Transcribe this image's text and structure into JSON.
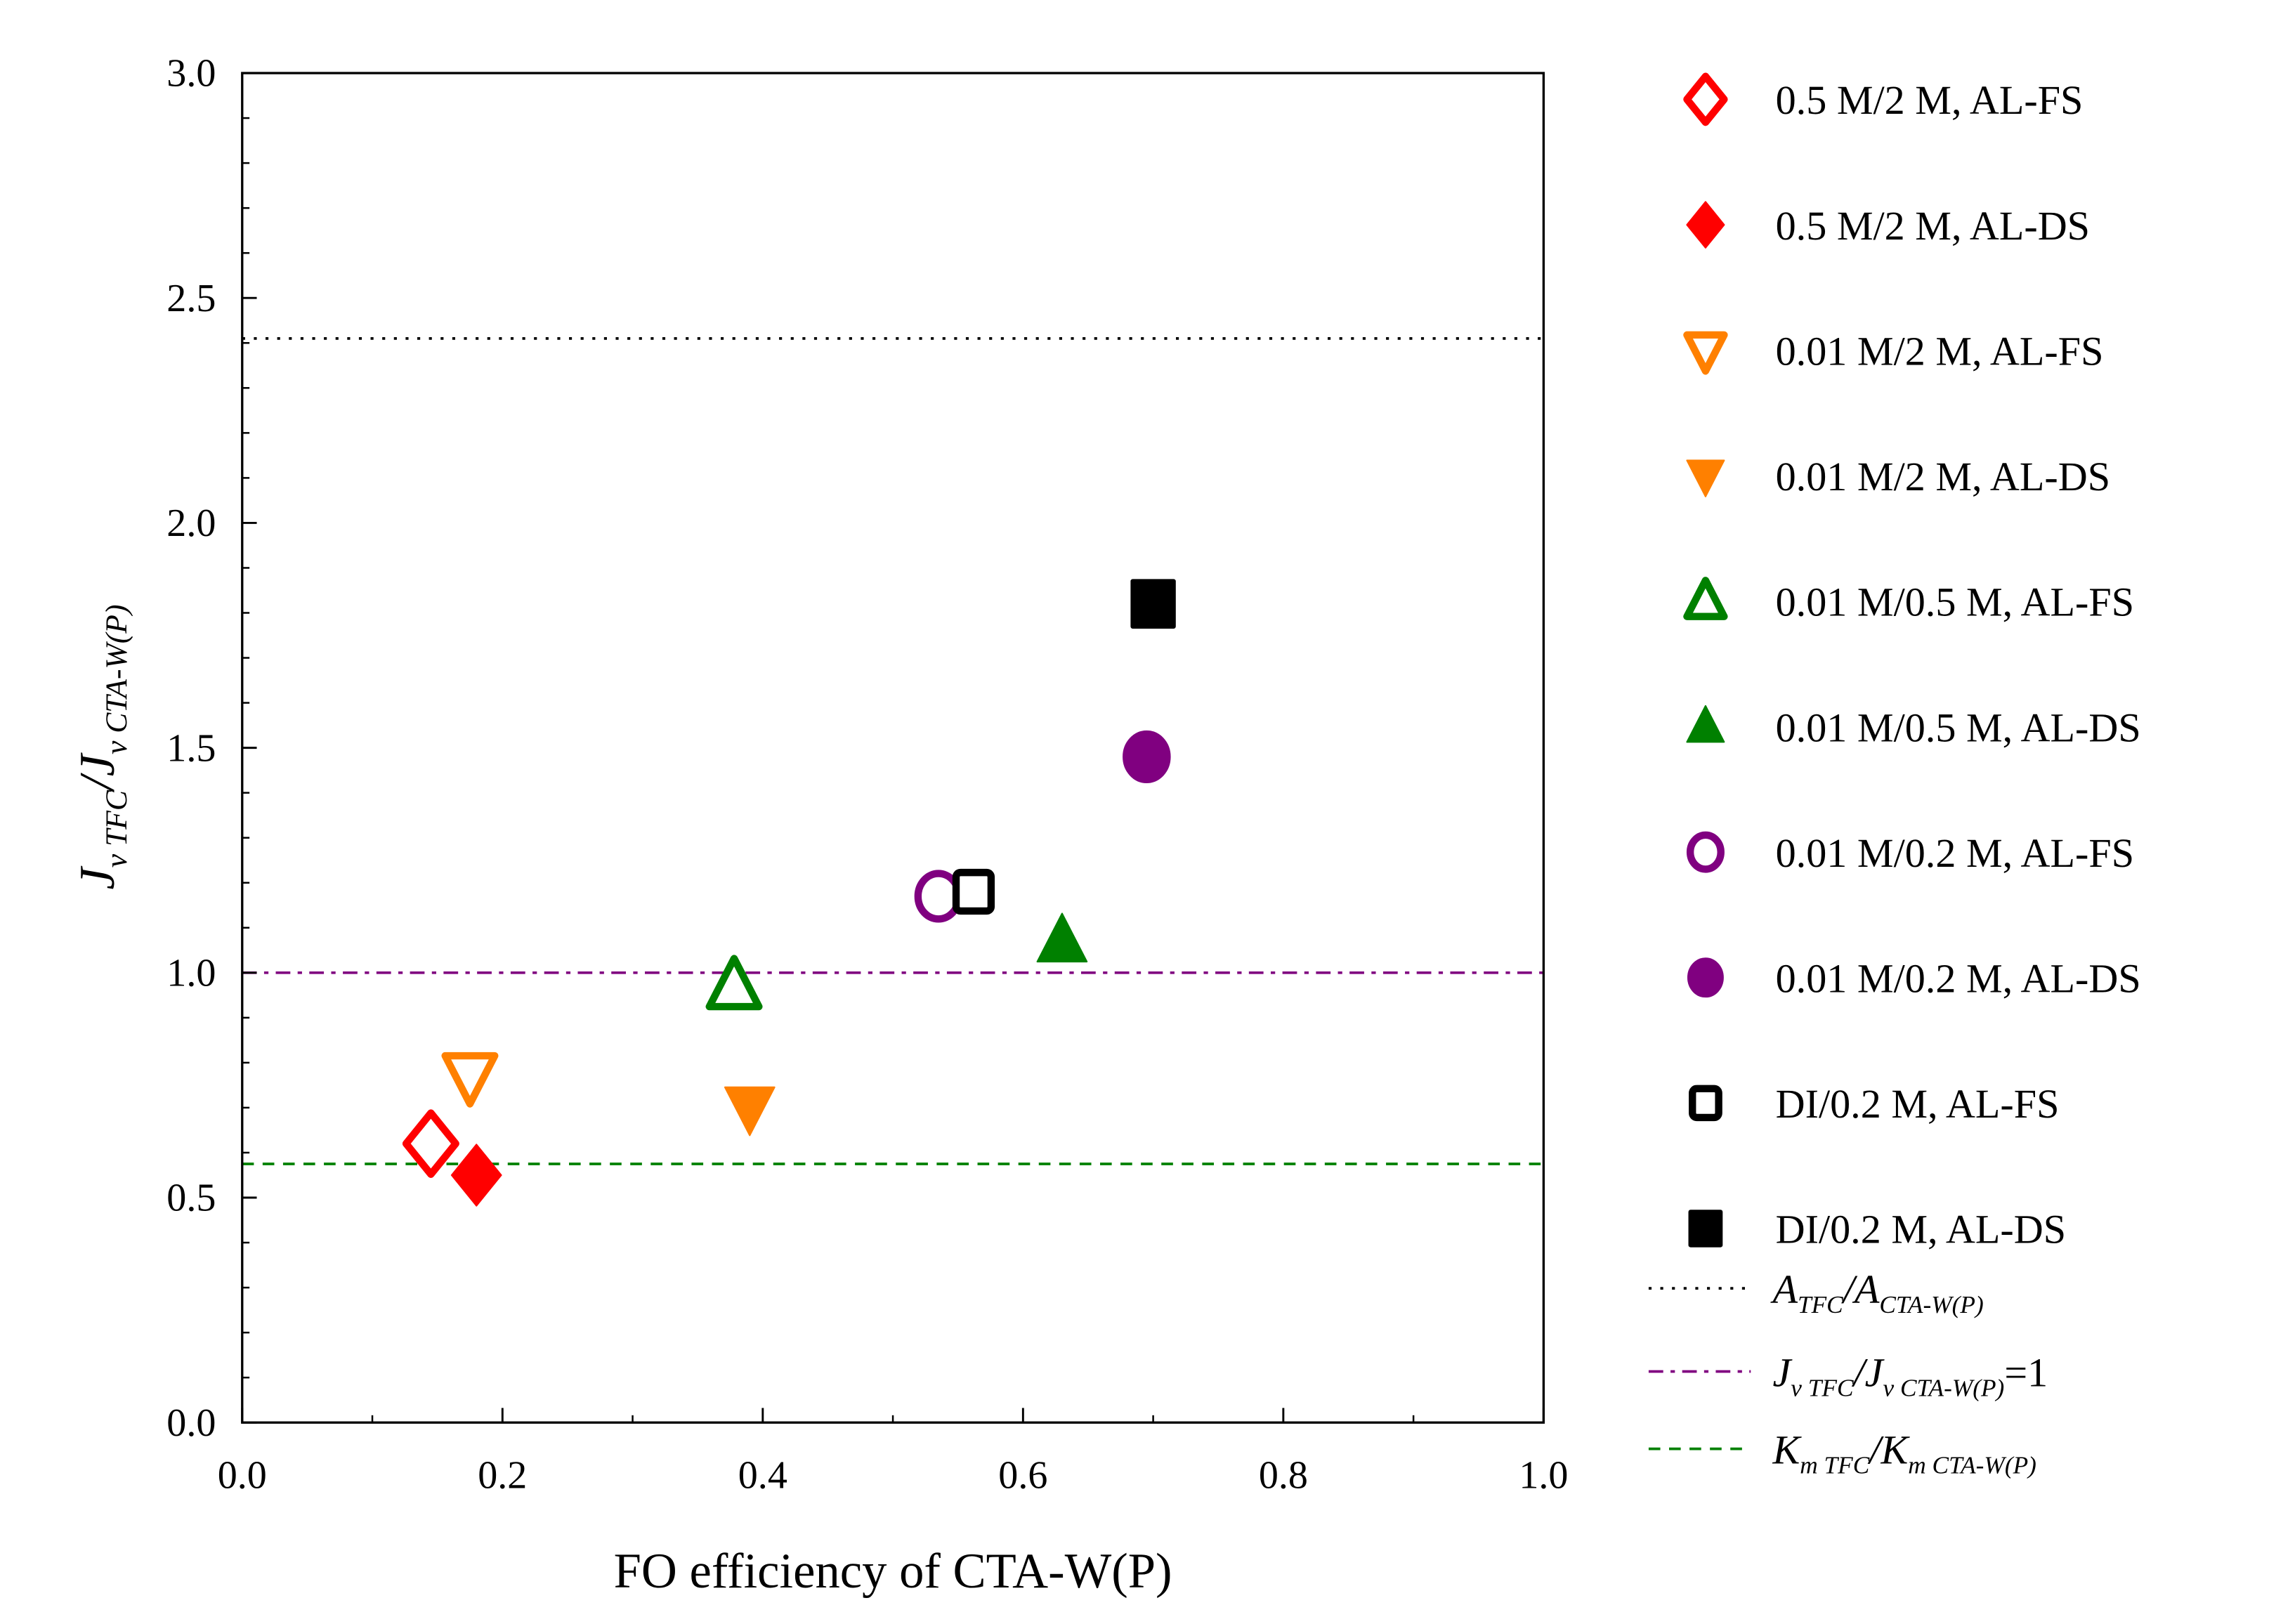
{
  "chart_data": {
    "type": "scatter",
    "xlabel": "FO efficiency of CTA-W(P)",
    "ylabel_parts": [
      {
        "t": "J",
        "sub": false
      },
      {
        "t": "v TFC",
        "sub": true
      },
      {
        "t": "/J",
        "sub": false
      },
      {
        "t": "v CTA-W(P)",
        "sub": true
      }
    ],
    "xlim": [
      0.0,
      1.0
    ],
    "ylim": [
      0.0,
      3.0
    ],
    "xticks": [
      "0.0",
      "0.2",
      "0.4",
      "0.6",
      "0.8",
      "1.0"
    ],
    "yticks": [
      "0.0",
      "0.5",
      "1.0",
      "1.5",
      "2.0",
      "2.5",
      "3.0"
    ],
    "grid": false,
    "legend_position": "right-outside",
    "series": [
      {
        "name": "0.5 M/2 M, AL-FS",
        "marker": "diamond",
        "filled": false,
        "color": "#ff0000",
        "x": [
          0.145
        ],
        "y": [
          0.62
        ]
      },
      {
        "name": "0.5 M/2 M, AL-DS",
        "marker": "diamond",
        "filled": true,
        "color": "#ff0000",
        "x": [
          0.18
        ],
        "y": [
          0.55
        ]
      },
      {
        "name": "0.01 M/2 M, AL-FS",
        "marker": "triangle-down",
        "filled": false,
        "color": "#ff8000",
        "x": [
          0.175
        ],
        "y": [
          0.77
        ]
      },
      {
        "name": "0.01 M/2 M, AL-DS",
        "marker": "triangle-down",
        "filled": true,
        "color": "#ff8000",
        "x": [
          0.39
        ],
        "y": [
          0.7
        ]
      },
      {
        "name": "0.01 M/0.5 M, AL-FS",
        "marker": "triangle-up",
        "filled": false,
        "color": "#008000",
        "x": [
          0.378
        ],
        "y": [
          0.97
        ]
      },
      {
        "name": "0.01 M/0.5 M, AL-DS",
        "marker": "triangle-up",
        "filled": true,
        "color": "#008000",
        "x": [
          0.63
        ],
        "y": [
          1.07
        ]
      },
      {
        "name": "0.01 M/0.2  M, AL-FS",
        "marker": "circle",
        "filled": false,
        "color": "#800080",
        "x": [
          0.535
        ],
        "y": [
          1.17
        ]
      },
      {
        "name": "0.01 M/0.2  M, AL-DS",
        "marker": "circle",
        "filled": true,
        "color": "#800080",
        "x": [
          0.695
        ],
        "y": [
          1.48
        ]
      },
      {
        "name": "DI/0.2 M, AL-FS",
        "marker": "square",
        "filled": false,
        "color": "#000000",
        "x": [
          0.562
        ],
        "y": [
          1.18
        ]
      },
      {
        "name": "DI/0.2 M, AL-DS",
        "marker": "square",
        "filled": true,
        "color": "#000000",
        "x": [
          0.7
        ],
        "y": [
          1.82
        ]
      }
    ],
    "reference_lines": [
      {
        "y": 2.41,
        "style": "dotted",
        "color": "#000000",
        "label_parts": [
          {
            "t": "A",
            "sub": false
          },
          {
            "t": "TFC",
            "sub": true
          },
          {
            "t": "/A",
            "sub": false
          },
          {
            "t": "CTA-W(P)",
            "sub": true
          }
        ]
      },
      {
        "y": 1.0,
        "style": "dash-dot",
        "color": "#800080",
        "label_parts": [
          {
            "t": "J",
            "sub": false
          },
          {
            "t": "v TFC",
            "sub": true
          },
          {
            "t": "/J",
            "sub": false
          },
          {
            "t": "v CTA-W(P)",
            "sub": true
          },
          {
            "t": "=1",
            "sub": false,
            "upright": true
          }
        ]
      },
      {
        "y": 0.575,
        "style": "dashed",
        "color": "#008000",
        "label_parts": [
          {
            "t": "K",
            "sub": false
          },
          {
            "t": "m TFC",
            "sub": true
          },
          {
            "t": "/K",
            "sub": false
          },
          {
            "t": "m CTA-W(P)",
            "sub": true
          }
        ]
      }
    ]
  }
}
